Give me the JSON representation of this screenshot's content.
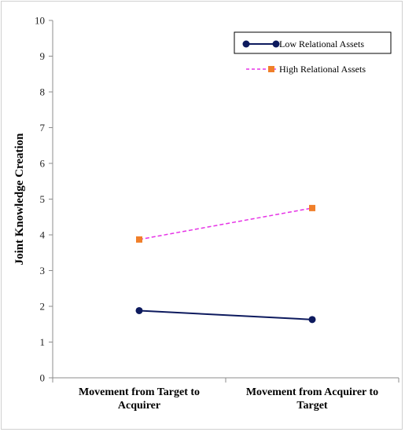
{
  "chart_data": {
    "type": "line",
    "title": "",
    "xlabel": "",
    "ylabel": "Joint Knowledge Creation",
    "ylim": [
      0,
      10
    ],
    "yticks": [
      0,
      1,
      2,
      3,
      4,
      5,
      6,
      7,
      8,
      9,
      10
    ],
    "grid": false,
    "legend_position": "top-right",
    "categories": [
      [
        "Movement from Target to",
        "Acquirer"
      ],
      [
        "Movement from Acquirer to",
        "Target"
      ]
    ],
    "series": [
      {
        "name": "Low Relational Assets",
        "values": [
          1.88,
          1.63
        ],
        "color": "#0d1a5e",
        "line": "solid",
        "marker": "circle"
      },
      {
        "name": "High Relational Assets",
        "values": [
          3.87,
          4.75
        ],
        "color": "#e633e6",
        "marker_color": "#f07f2a",
        "line": "dashed",
        "marker": "square"
      }
    ]
  }
}
